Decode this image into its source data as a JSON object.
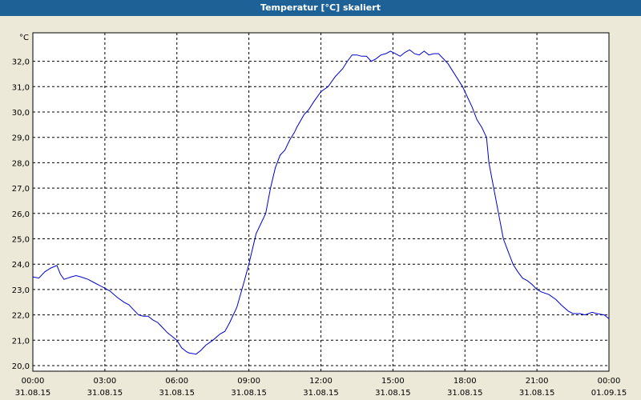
{
  "window": {
    "title": "Temperatur [°C] skaliert"
  },
  "chart_data": {
    "type": "line",
    "title": "Temperatur [°C] skaliert",
    "ylabel": "°C",
    "xlabel": "",
    "ylim": [
      20.0,
      32.7
    ],
    "y_ticks": [
      "20,0",
      "21,0",
      "22,0",
      "23,0",
      "24,0",
      "25,0",
      "26,0",
      "27,0",
      "28,0",
      "29,0",
      "30,0",
      "31,0",
      "32,0"
    ],
    "x_ticks": [
      {
        "time": "00:00",
        "date": "31.08.15"
      },
      {
        "time": "03:00",
        "date": "31.08.15"
      },
      {
        "time": "06:00",
        "date": "31.08.15"
      },
      {
        "time": "09:00",
        "date": "31.08.15"
      },
      {
        "time": "12:00",
        "date": "31.08.15"
      },
      {
        "time": "15:00",
        "date": "31.08.15"
      },
      {
        "time": "18:00",
        "date": "31.08.15"
      },
      {
        "time": "21:00",
        "date": "31.08.15"
      },
      {
        "time": "00:00",
        "date": "01.09.15"
      }
    ],
    "grid": true,
    "line_color": "#0000cc",
    "series": [
      {
        "x_hours": [
          0,
          0.25,
          0.5,
          0.75,
          1.0,
          1.15,
          1.3,
          1.6,
          1.8,
          2.0,
          2.3,
          2.6,
          2.9,
          3.2,
          3.5,
          3.8,
          4.0,
          4.2,
          4.4,
          4.6,
          4.8,
          5.0,
          5.2,
          5.4,
          5.6,
          5.8,
          6.0,
          6.2,
          6.4,
          6.5,
          6.8,
          7.0,
          7.2,
          7.5,
          7.8,
          8.0,
          8.2,
          8.5,
          8.8,
          9.0,
          9.3,
          9.5,
          9.7,
          9.9,
          10.1,
          10.3,
          10.5,
          10.7,
          10.9,
          11.0,
          11.3,
          11.5,
          11.7,
          12.0,
          12.3,
          12.6,
          12.9,
          13.1,
          13.3,
          13.5,
          13.7,
          13.9,
          14.1,
          14.3,
          14.5,
          14.7,
          14.9,
          15.1,
          15.3,
          15.5,
          15.7,
          15.9,
          16.1,
          16.3,
          16.5,
          16.7,
          16.9,
          17.1,
          17.3,
          17.5,
          17.7,
          17.9,
          18.1,
          18.3,
          18.5,
          18.7,
          18.9,
          19.0,
          19.2,
          19.4,
          19.6,
          19.8,
          20.0,
          20.2,
          20.4,
          20.6,
          20.8,
          21.0,
          21.2,
          21.5,
          21.8,
          22.0,
          22.3,
          22.5,
          22.8,
          23.0,
          23.3,
          23.5,
          23.8,
          24.0
        ],
        "y": [
          23.5,
          23.45,
          23.7,
          23.85,
          23.95,
          23.6,
          23.4,
          23.5,
          23.55,
          23.5,
          23.4,
          23.25,
          23.1,
          22.95,
          22.7,
          22.5,
          22.4,
          22.2,
          22.0,
          21.95,
          21.95,
          21.8,
          21.7,
          21.5,
          21.3,
          21.15,
          21.0,
          20.7,
          20.55,
          20.5,
          20.45,
          20.6,
          20.8,
          21.0,
          21.25,
          21.35,
          21.7,
          22.3,
          23.3,
          24.0,
          25.2,
          25.6,
          26.0,
          27.0,
          27.8,
          28.3,
          28.5,
          28.9,
          29.2,
          29.4,
          29.9,
          30.1,
          30.4,
          30.8,
          31.0,
          31.4,
          31.7,
          32.0,
          32.25,
          32.25,
          32.2,
          32.2,
          32.0,
          32.1,
          32.25,
          32.3,
          32.4,
          32.3,
          32.2,
          32.35,
          32.45,
          32.3,
          32.25,
          32.4,
          32.25,
          32.3,
          32.3,
          32.1,
          31.9,
          31.6,
          31.3,
          31.0,
          30.6,
          30.2,
          29.7,
          29.4,
          29.0,
          28.0,
          27.0,
          26.0,
          25.0,
          24.5,
          24.0,
          23.7,
          23.45,
          23.35,
          23.2,
          23.0,
          22.9,
          22.8,
          22.6,
          22.4,
          22.15,
          22.05,
          22.05,
          22.0,
          22.1,
          22.05,
          22.0,
          21.85
        ]
      }
    ]
  }
}
